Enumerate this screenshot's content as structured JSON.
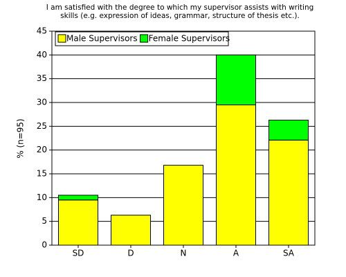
{
  "chart_data": {
    "type": "stacked-bar",
    "title": [
      "I am satisfied with the degree to which my supervisor assists with writing",
      "skills (e.g. expression of ideas, grammar, structure of thesis etc.)."
    ],
    "y_label": "% (n=95)",
    "categories": [
      "SD",
      "D",
      "N",
      "A",
      "SA"
    ],
    "series": [
      {
        "name": "Male Supervisors",
        "color": "#ffff00",
        "values": [
          9.5,
          6.3,
          16.8,
          29.5,
          22.1
        ]
      },
      {
        "name": "Female Supervisors",
        "color": "#00ff00",
        "values": [
          1.0,
          0,
          0,
          10.5,
          4.2
        ]
      }
    ],
    "ylim": [
      0,
      45
    ],
    "yticks": [
      0,
      5,
      10,
      15,
      20,
      25,
      30,
      35,
      40,
      45
    ],
    "grid": true,
    "legend": "top-left"
  }
}
